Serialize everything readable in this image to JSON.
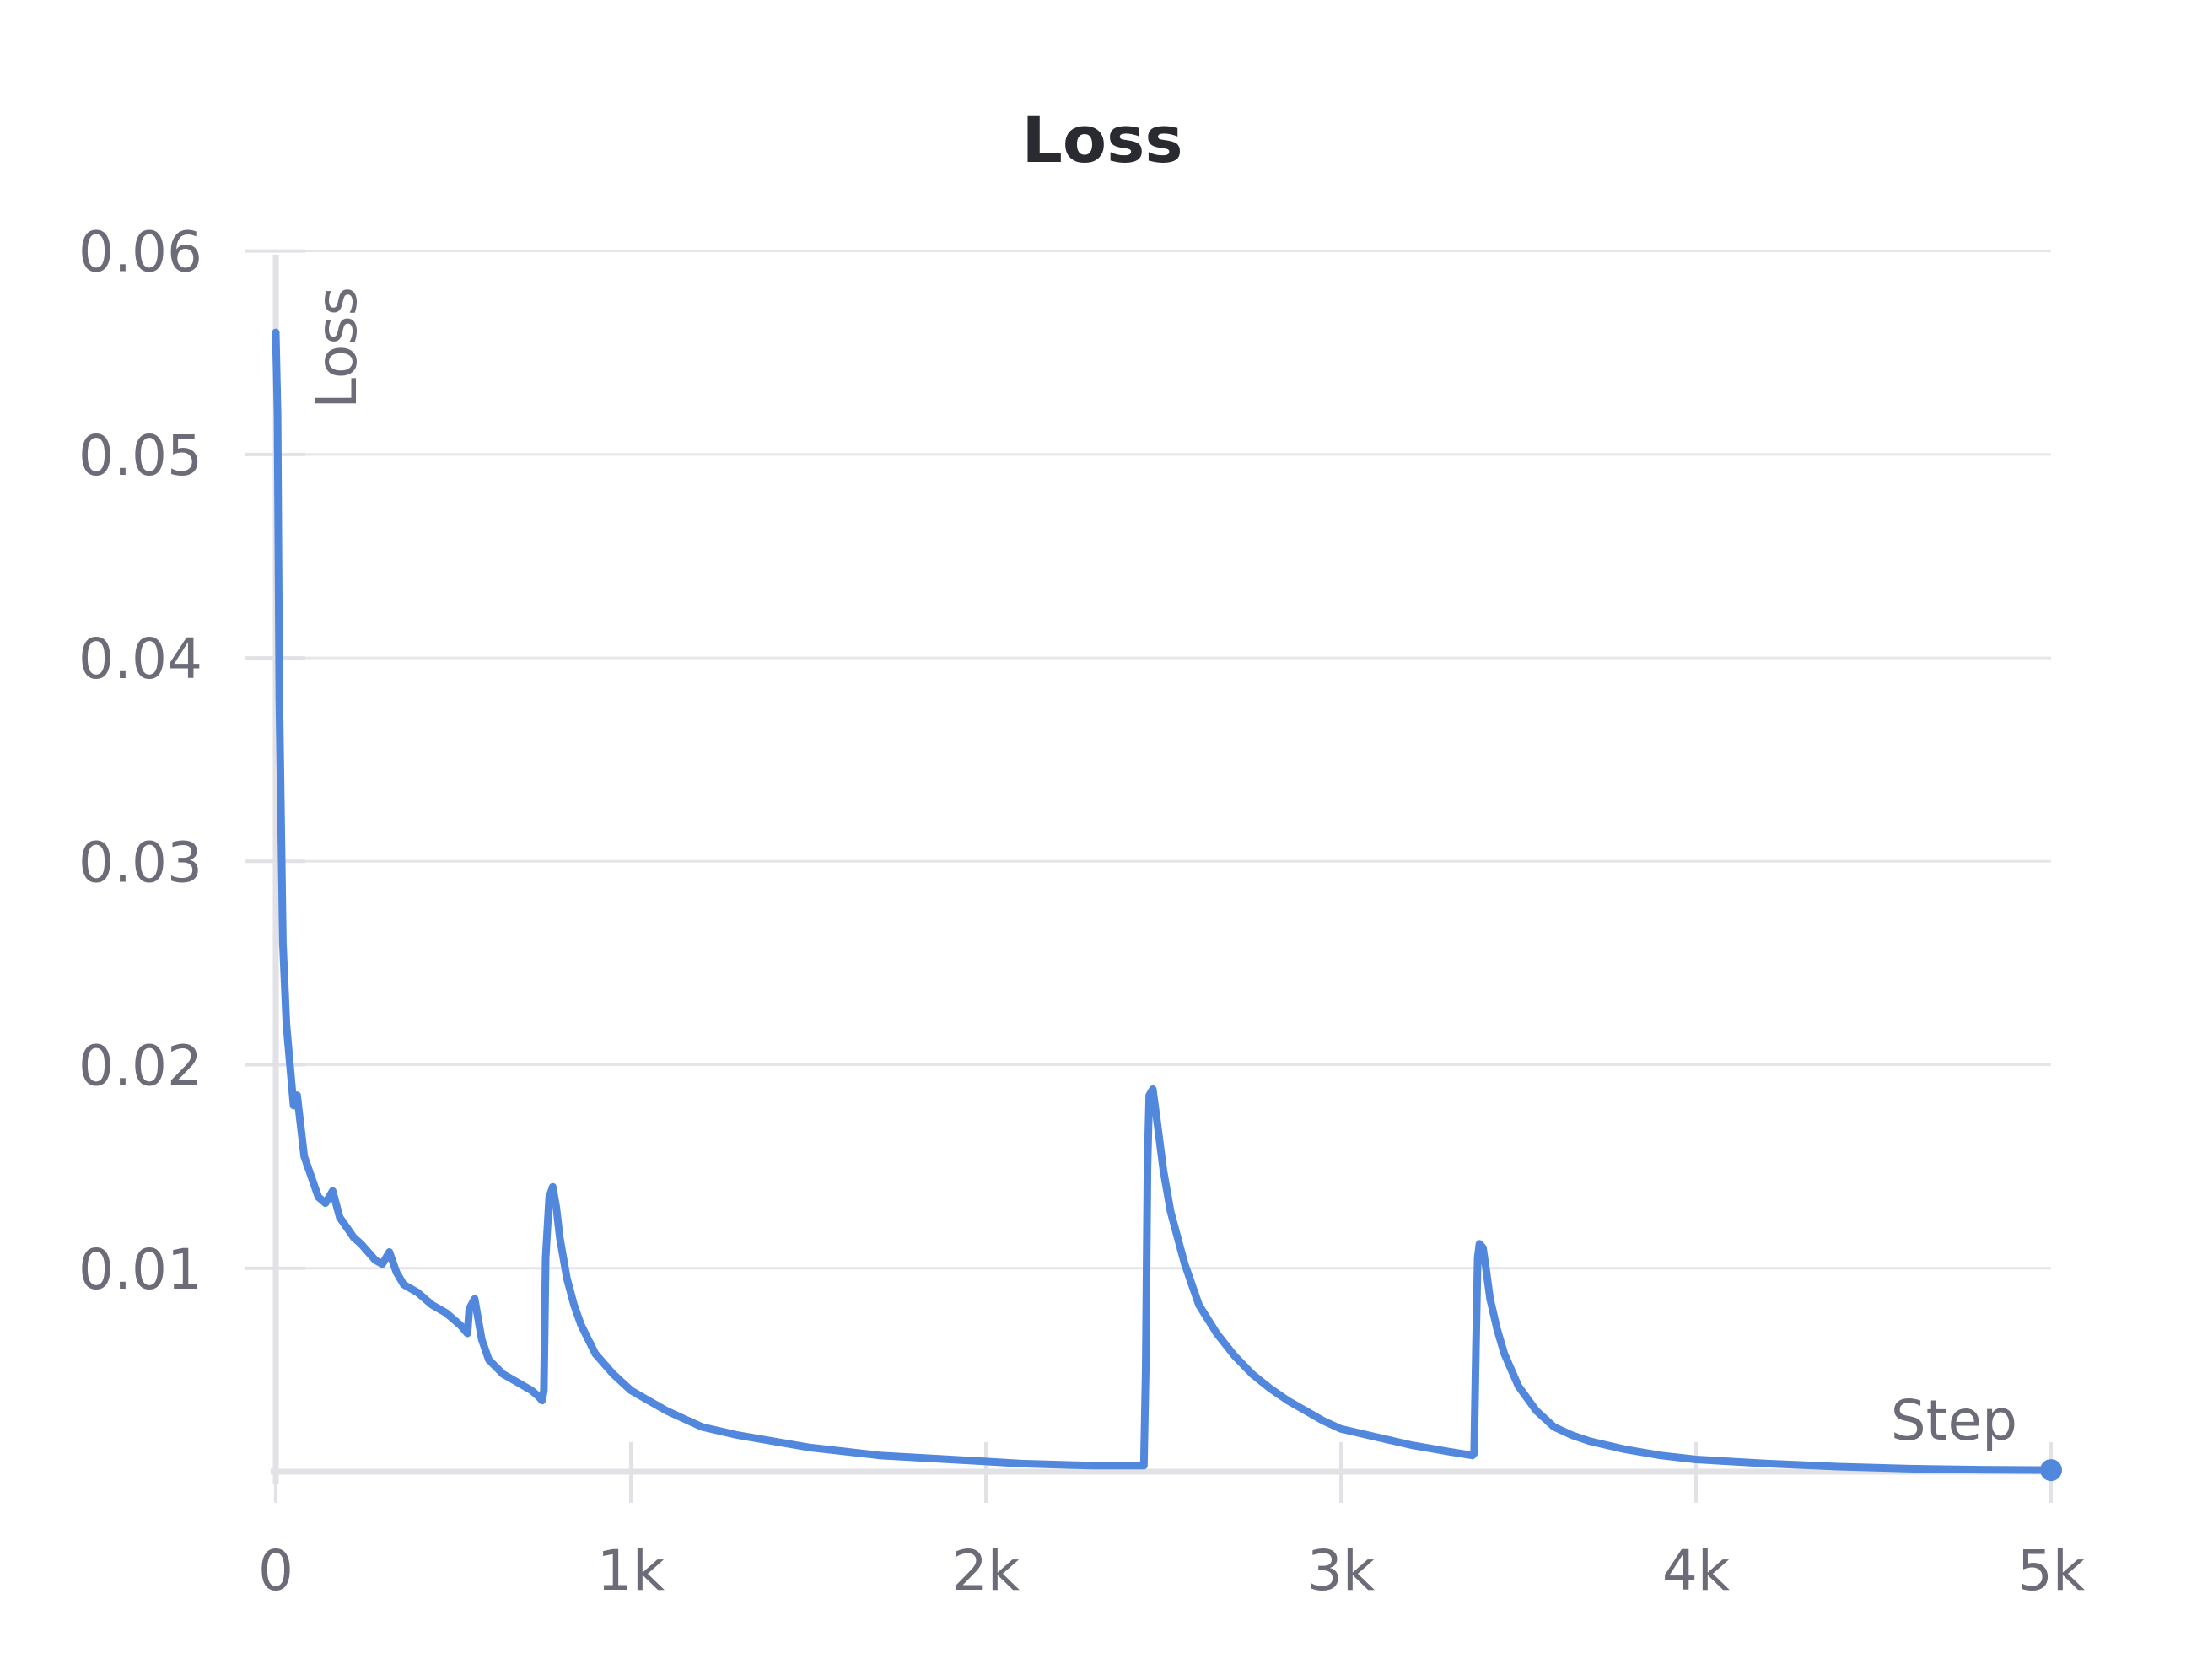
{
  "chart_data": {
    "type": "line",
    "title": "Loss",
    "xlabel": "Step",
    "ylabel": "Loss",
    "xlim": [
      0,
      5000
    ],
    "ylim": [
      0,
      0.065
    ],
    "x_ticks": [
      0,
      1000,
      2000,
      3000,
      4000,
      5000
    ],
    "x_tick_labels": [
      "0",
      "1k",
      "2k",
      "3k",
      "4k",
      "5k"
    ],
    "y_ticks": [
      0.01,
      0.02,
      0.03,
      0.04,
      0.05,
      0.06
    ],
    "y_tick_labels": [
      "0.01",
      "0.02",
      "0.03",
      "0.04",
      "0.05",
      "0.06"
    ],
    "grid": true,
    "color": "#5187dc",
    "series": [
      {
        "name": "",
        "x": [
          0,
          5,
          10,
          20,
          30,
          40,
          50,
          60,
          70,
          80,
          90,
          100,
          110,
          120,
          140,
          160,
          180,
          200,
          220,
          240,
          260,
          280,
          300,
          320,
          340,
          360,
          400,
          440,
          480,
          520,
          540,
          545,
          560,
          580,
          600,
          640,
          680,
          720,
          740,
          750,
          755,
          760,
          770,
          780,
          790,
          800,
          820,
          840,
          860,
          880,
          900,
          950,
          1000,
          1050,
          1100,
          1150,
          1200,
          1300,
          1400,
          1500,
          1600,
          1700,
          1800,
          1900,
          2000,
          2100,
          2200,
          2300,
          2400,
          2445,
          2450,
          2455,
          2460,
          2470,
          2480,
          2500,
          2520,
          2540,
          2560,
          2580,
          2600,
          2650,
          2700,
          2750,
          2800,
          2850,
          2900,
          2950,
          3000,
          3100,
          3200,
          3300,
          3370,
          3375,
          3380,
          3385,
          3390,
          3400,
          3410,
          3420,
          3440,
          3460,
          3480,
          3500,
          3550,
          3600,
          3650,
          3700,
          3800,
          3900,
          4000,
          4200,
          4400,
          4600,
          4800,
          5000
        ],
        "values": [
          0.056,
          0.052,
          0.038,
          0.026,
          0.022,
          0.02,
          0.018,
          0.0185,
          0.017,
          0.0155,
          0.015,
          0.0145,
          0.014,
          0.0135,
          0.0132,
          0.0138,
          0.0125,
          0.012,
          0.0115,
          0.0112,
          0.0108,
          0.0104,
          0.0102,
          0.0108,
          0.0098,
          0.0092,
          0.0088,
          0.0082,
          0.0078,
          0.0072,
          0.0068,
          0.008,
          0.0085,
          0.0065,
          0.0055,
          0.0048,
          0.0044,
          0.004,
          0.0037,
          0.0035,
          0.004,
          0.0105,
          0.0135,
          0.014,
          0.013,
          0.0115,
          0.0095,
          0.0082,
          0.0072,
          0.0065,
          0.0058,
          0.0048,
          0.004,
          0.0035,
          0.003,
          0.0026,
          0.0022,
          0.0018,
          0.0015,
          0.0012,
          0.001,
          0.0008,
          0.0007,
          0.0006,
          0.0005,
          0.0004,
          0.00035,
          0.0003,
          0.0003,
          0.0003,
          0.005,
          0.015,
          0.0185,
          0.0188,
          0.0175,
          0.0148,
          0.0128,
          0.0115,
          0.0102,
          0.0092,
          0.0082,
          0.0068,
          0.0057,
          0.0048,
          0.0041,
          0.0035,
          0.003,
          0.0025,
          0.0021,
          0.0017,
          0.0013,
          0.001,
          0.0008,
          0.0009,
          0.006,
          0.0105,
          0.0112,
          0.011,
          0.0098,
          0.0085,
          0.007,
          0.0058,
          0.005,
          0.0042,
          0.003,
          0.0022,
          0.0018,
          0.0015,
          0.0011,
          0.0008,
          0.0006,
          0.0004,
          0.00025,
          0.00015,
          0.0001,
          8e-05
        ]
      }
    ]
  }
}
